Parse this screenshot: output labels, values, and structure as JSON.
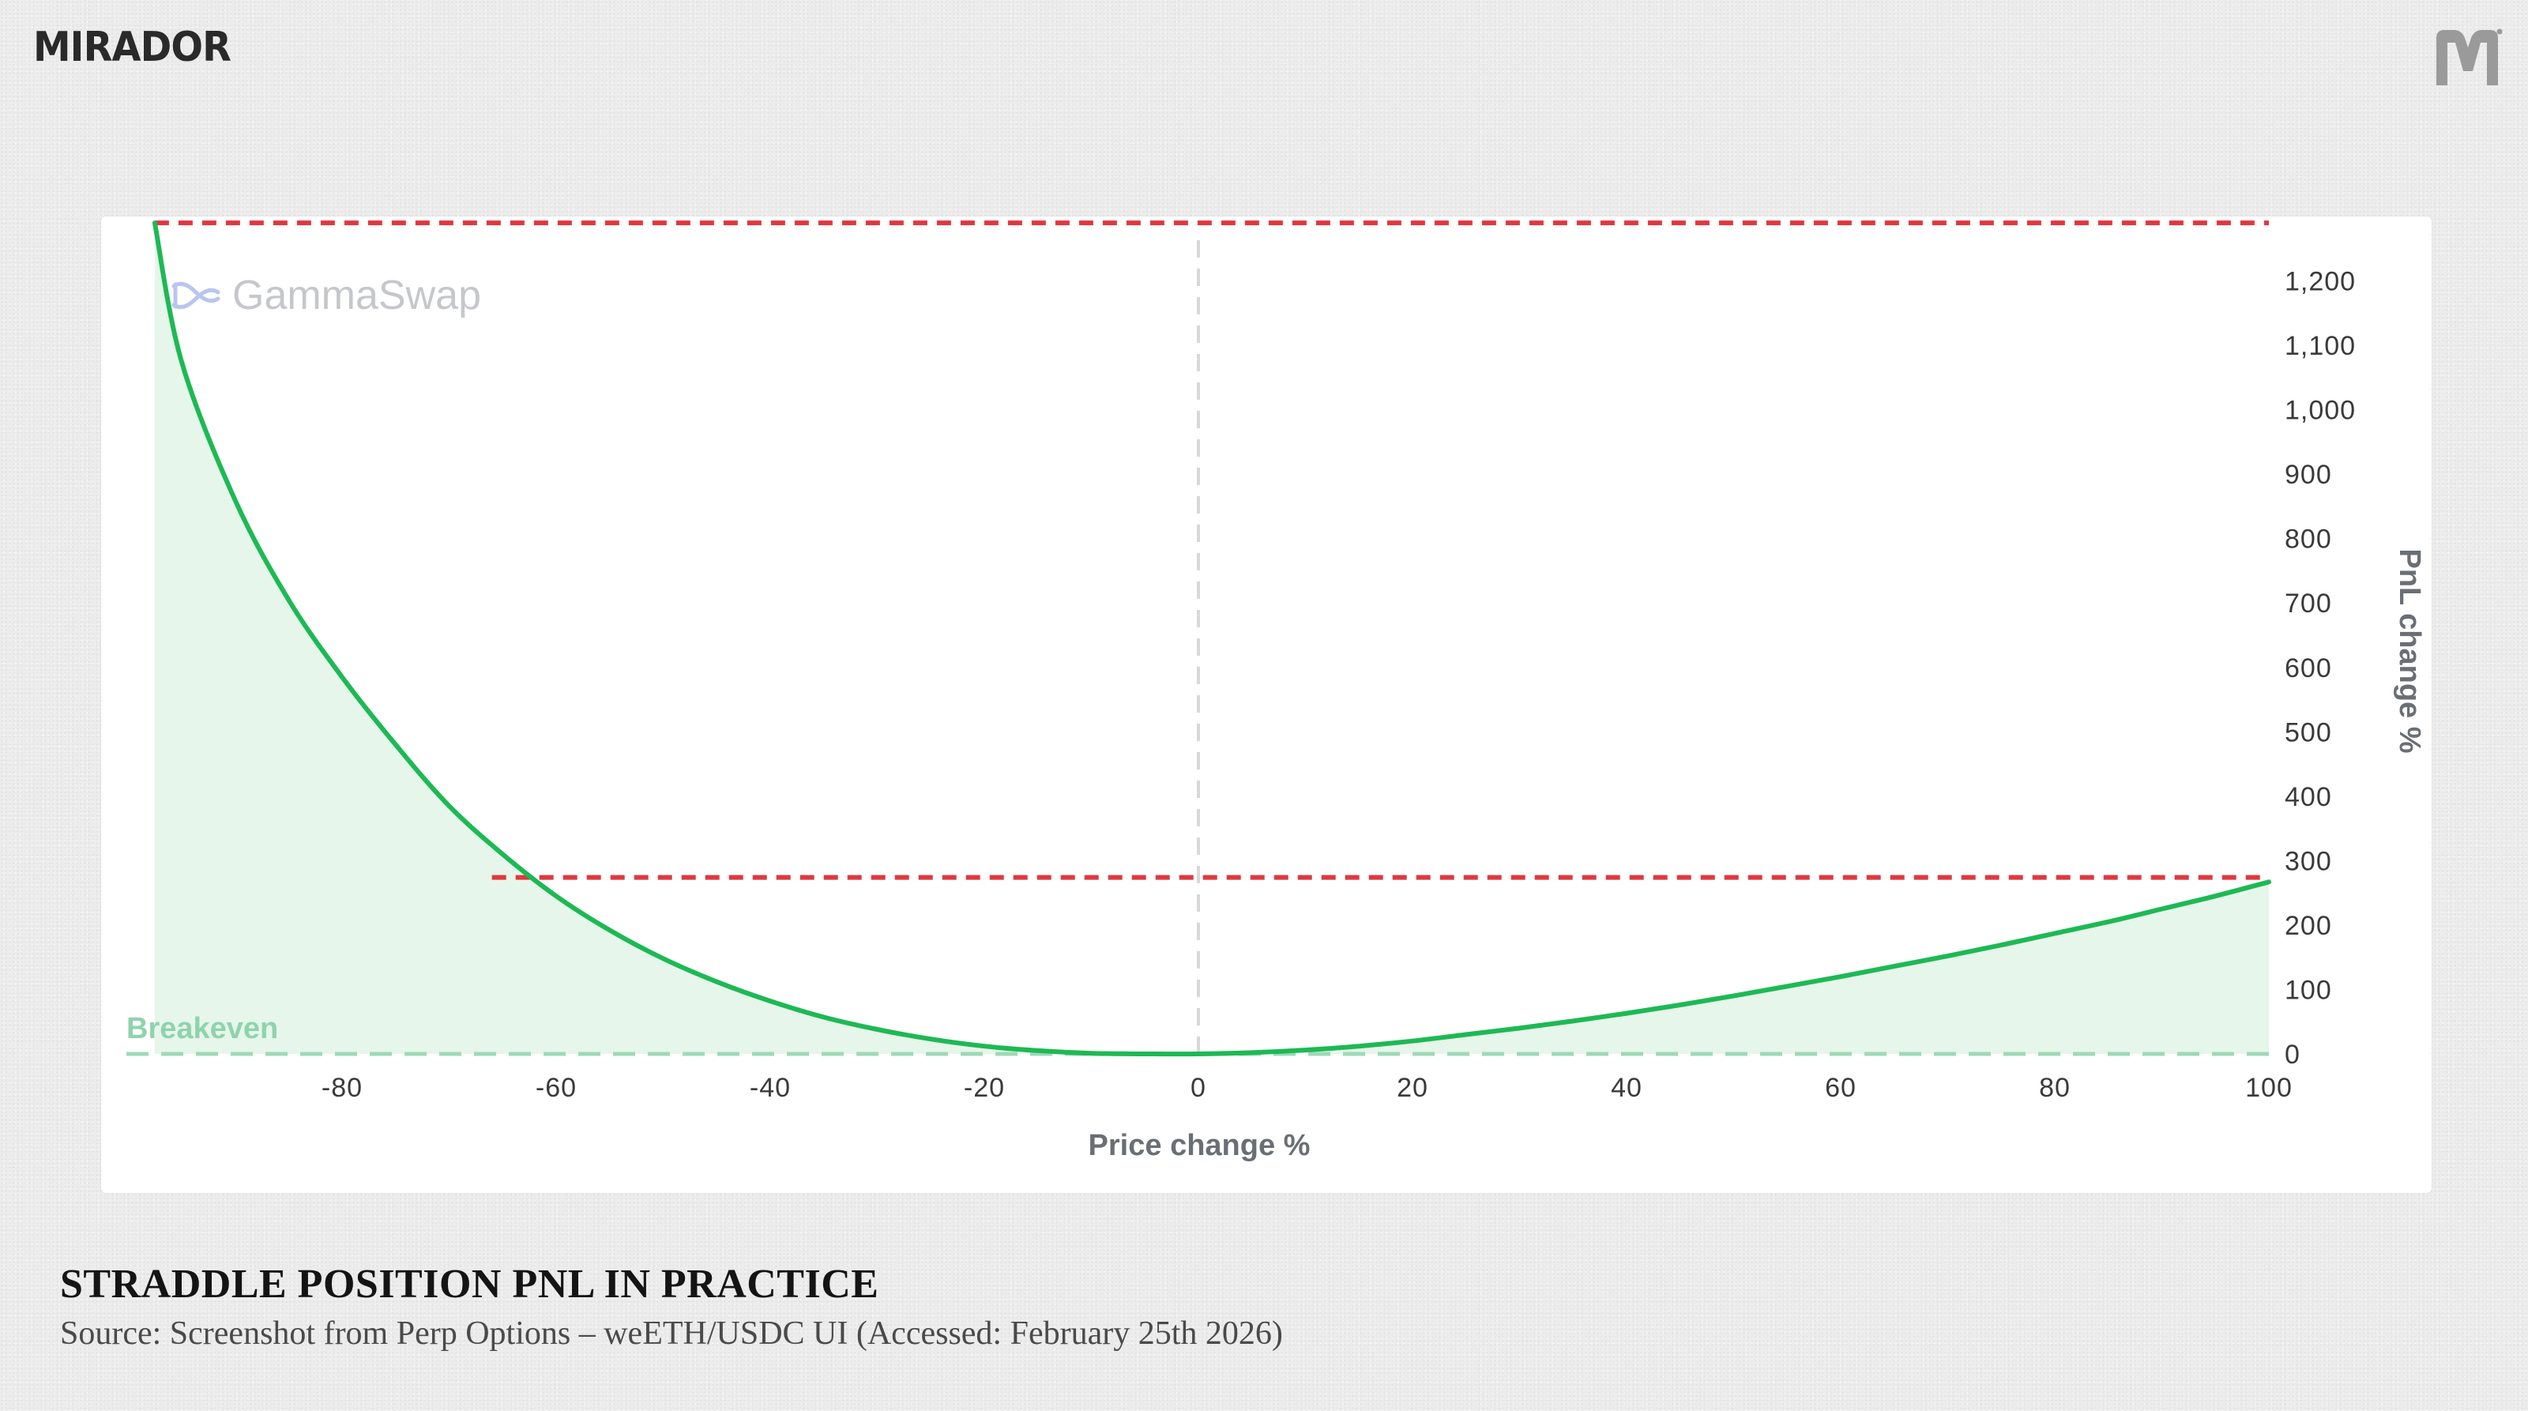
{
  "brand": {
    "name": "MIRADOR",
    "corner_logo_icon": "mirador-m-logo-icon"
  },
  "watermark": {
    "text": "GammaSwap",
    "icon": "gammaswap-logo-icon"
  },
  "caption": {
    "title": "STRADDLE POSITION PNL IN PRACTICE",
    "source": "Source: Screenshot from Perp Options – weETH/USDC UI (Accessed: February 25th 2026)"
  },
  "colors": {
    "curve": "#1db954",
    "area": "#e6f6ea",
    "breakeven": "#9ed9b8",
    "breakeven_label": "#8fd3ad",
    "marker_lines": "#e0383e",
    "center_line": "#d8d8d8"
  },
  "chart_data": {
    "type": "area",
    "title": "",
    "xlabel": "Price change %",
    "ylabel": "PnL change %",
    "xlim": [
      -100,
      100
    ],
    "ylim": [
      0,
      1300
    ],
    "x_ticks": [
      -80,
      -60,
      -40,
      -20,
      0,
      20,
      40,
      60,
      80,
      100
    ],
    "x_tick_labels": [
      "-80",
      "-60",
      "-40",
      "-20",
      "0",
      "20",
      "40",
      "60",
      "80",
      "100"
    ],
    "y_ticks": [
      0,
      100,
      200,
      300,
      400,
      500,
      600,
      700,
      800,
      900,
      1000,
      1100,
      1200
    ],
    "y_tick_labels": [
      "0",
      "100",
      "200",
      "300",
      "400",
      "500",
      "600",
      "700",
      "800",
      "900",
      "1,000",
      "1,100",
      "1,200"
    ],
    "y_axis_position": "right",
    "grid": false,
    "series": [
      {
        "x": [
          -97.5,
          -95,
          -90,
          -85,
          -80,
          -75,
          -70,
          -65,
          -60,
          -55,
          -50,
          -45,
          -40,
          -35,
          -30,
          -25,
          -20,
          -15,
          -10,
          -5,
          0,
          5,
          10,
          15,
          20,
          25,
          30,
          35,
          40,
          45,
          50,
          55,
          60,
          65,
          70,
          75,
          80,
          85,
          90,
          95,
          100
        ],
        "y": [
          1290,
          1075,
          860,
          705,
          585,
          480,
          385,
          310,
          245,
          192,
          148,
          112,
          82,
          57,
          38,
          23,
          12,
          5,
          1,
          0,
          0,
          2,
          6,
          12,
          20,
          30,
          40,
          51,
          63,
          76,
          90,
          105,
          120,
          136,
          152,
          169,
          187,
          205,
          225,
          245,
          267
        ]
      }
    ],
    "annotations": [
      {
        "type": "hline",
        "label": "Breakeven",
        "y": 0,
        "style": "dashed"
      },
      {
        "type": "hline",
        "y": 1290,
        "x_range": [
          -97.5,
          100
        ],
        "style": "dashed-red"
      },
      {
        "type": "hline",
        "y": 274,
        "x_range": [
          -66,
          100
        ],
        "style": "dashed-red"
      },
      {
        "type": "vline",
        "x": 0,
        "style": "dashed-gray"
      }
    ]
  }
}
